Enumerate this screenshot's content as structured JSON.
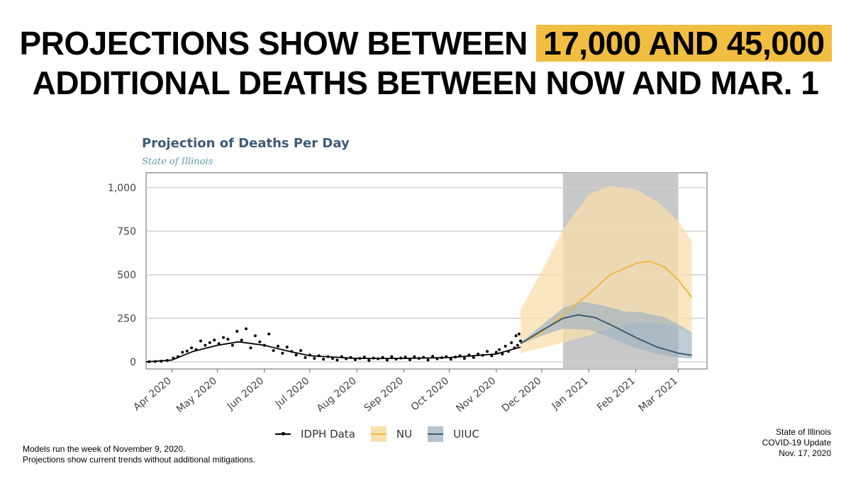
{
  "headline": {
    "line1_prefix": "PROJECTIONS SHOW BETWEEN",
    "line1_highlight": "17,000 AND 45,000",
    "line2": "ADDITIONAL DEATHS BETWEEN NOW AND MAR. 1"
  },
  "colors": {
    "highlight": "#f2be42",
    "idph": "#000000",
    "nu": "#f2b744",
    "nu_band": "#f8dfae",
    "uiuc": "#3c5d73",
    "uiuc_band": "#9eb1c0",
    "projection_shade": "#c8c8c8"
  },
  "chart_data": {
    "type": "line",
    "title": "Projection of Deaths Per Day",
    "subtitle": "State of Illinois",
    "xlabel": "",
    "ylabel": "",
    "ylim": [
      0,
      1000
    ],
    "yticks": [
      0,
      250,
      500,
      750,
      1000
    ],
    "ytick_labels": [
      "0",
      "250",
      "500",
      "750",
      "1,000"
    ],
    "x_tick_labels": [
      "Apr 2020",
      "May 2020",
      "Jun 2020",
      "Jul 2020",
      "Aug 2020",
      "Sep 2020",
      "Oct 2020",
      "Nov 2020",
      "Dec 2020",
      "Jan 2021",
      "Feb 2021",
      "Mar 2021"
    ],
    "x_tick_dates": [
      "2020-04-01",
      "2020-05-01",
      "2020-06-01",
      "2020-07-01",
      "2020-08-01",
      "2020-09-01",
      "2020-10-01",
      "2020-11-01",
      "2020-12-01",
      "2021-01-01",
      "2021-02-01",
      "2021-03-01"
    ],
    "xlim": [
      "2020-03-15",
      "2021-03-20"
    ],
    "projection_window": [
      "2020-12-15",
      "2021-03-01"
    ],
    "grid": "horizontal",
    "legend_position": "bottom",
    "series": [
      {
        "name": "IDPH Data",
        "style": "points+smooth",
        "points": [
          [
            "2020-03-17",
            1
          ],
          [
            "2020-03-21",
            2
          ],
          [
            "2020-03-25",
            4
          ],
          [
            "2020-03-29",
            8
          ],
          [
            "2020-04-02",
            22
          ],
          [
            "2020-04-05",
            30
          ],
          [
            "2020-04-08",
            55
          ],
          [
            "2020-04-11",
            62
          ],
          [
            "2020-04-14",
            80
          ],
          [
            "2020-04-17",
            70
          ],
          [
            "2020-04-20",
            120
          ],
          [
            "2020-04-23",
            95
          ],
          [
            "2020-04-26",
            110
          ],
          [
            "2020-04-29",
            125
          ],
          [
            "2020-05-02",
            105
          ],
          [
            "2020-05-05",
            140
          ],
          [
            "2020-05-08",
            130
          ],
          [
            "2020-05-11",
            95
          ],
          [
            "2020-05-14",
            175
          ],
          [
            "2020-05-17",
            125
          ],
          [
            "2020-05-20",
            190
          ],
          [
            "2020-05-23",
            80
          ],
          [
            "2020-05-26",
            150
          ],
          [
            "2020-05-29",
            115
          ],
          [
            "2020-06-01",
            95
          ],
          [
            "2020-06-04",
            160
          ],
          [
            "2020-06-07",
            65
          ],
          [
            "2020-06-10",
            90
          ],
          [
            "2020-06-13",
            50
          ],
          [
            "2020-06-16",
            85
          ],
          [
            "2020-06-19",
            60
          ],
          [
            "2020-06-22",
            40
          ],
          [
            "2020-06-25",
            65
          ],
          [
            "2020-06-28",
            25
          ],
          [
            "2020-07-01",
            40
          ],
          [
            "2020-07-04",
            20
          ],
          [
            "2020-07-07",
            35
          ],
          [
            "2020-07-10",
            15
          ],
          [
            "2020-07-13",
            30
          ],
          [
            "2020-07-16",
            20
          ],
          [
            "2020-07-19",
            10
          ],
          [
            "2020-07-22",
            30
          ],
          [
            "2020-07-25",
            18
          ],
          [
            "2020-07-28",
            25
          ],
          [
            "2020-07-31",
            12
          ],
          [
            "2020-08-03",
            20
          ],
          [
            "2020-08-06",
            28
          ],
          [
            "2020-08-09",
            8
          ],
          [
            "2020-08-12",
            22
          ],
          [
            "2020-08-15",
            18
          ],
          [
            "2020-08-18",
            26
          ],
          [
            "2020-08-21",
            10
          ],
          [
            "2020-08-24",
            30
          ],
          [
            "2020-08-27",
            16
          ],
          [
            "2020-08-30",
            22
          ],
          [
            "2020-09-02",
            28
          ],
          [
            "2020-09-05",
            12
          ],
          [
            "2020-09-08",
            30
          ],
          [
            "2020-09-11",
            20
          ],
          [
            "2020-09-14",
            26
          ],
          [
            "2020-09-17",
            10
          ],
          [
            "2020-09-20",
            32
          ],
          [
            "2020-09-23",
            18
          ],
          [
            "2020-09-26",
            24
          ],
          [
            "2020-09-29",
            30
          ],
          [
            "2020-10-02",
            15
          ],
          [
            "2020-10-05",
            28
          ],
          [
            "2020-10-08",
            35
          ],
          [
            "2020-10-11",
            20
          ],
          [
            "2020-10-14",
            40
          ],
          [
            "2020-10-17",
            25
          ],
          [
            "2020-10-20",
            45
          ],
          [
            "2020-10-23",
            38
          ],
          [
            "2020-10-26",
            60
          ],
          [
            "2020-10-29",
            35
          ],
          [
            "2020-11-01",
            55
          ],
          [
            "2020-11-03",
            70
          ],
          [
            "2020-11-05",
            45
          ],
          [
            "2020-11-07",
            90
          ],
          [
            "2020-11-09",
            60
          ],
          [
            "2020-11-11",
            110
          ],
          [
            "2020-11-13",
            80
          ],
          [
            "2020-11-14",
            150
          ],
          [
            "2020-11-15",
            95
          ],
          [
            "2020-11-16",
            160
          ],
          [
            "2020-11-17",
            120
          ]
        ],
        "smooth": [
          [
            "2020-03-15",
            0
          ],
          [
            "2020-04-01",
            10
          ],
          [
            "2020-04-15",
            60
          ],
          [
            "2020-05-01",
            95
          ],
          [
            "2020-05-15",
            115
          ],
          [
            "2020-06-01",
            95
          ],
          [
            "2020-06-15",
            65
          ],
          [
            "2020-07-01",
            35
          ],
          [
            "2020-08-01",
            20
          ],
          [
            "2020-09-01",
            20
          ],
          [
            "2020-10-01",
            25
          ],
          [
            "2020-11-01",
            45
          ],
          [
            "2020-11-17",
            85
          ]
        ]
      },
      {
        "name": "NU",
        "line": [
          [
            "2020-11-17",
            105
          ],
          [
            "2020-12-01",
            170
          ],
          [
            "2020-12-15",
            270
          ],
          [
            "2021-01-01",
            390
          ],
          [
            "2021-01-15",
            500
          ],
          [
            "2021-02-01",
            565
          ],
          [
            "2021-02-10",
            578
          ],
          [
            "2021-02-20",
            545
          ],
          [
            "2021-03-01",
            470
          ],
          [
            "2021-03-10",
            370
          ]
        ],
        "upper": [
          [
            "2020-11-17",
            300
          ],
          [
            "2020-12-01",
            520
          ],
          [
            "2020-12-15",
            760
          ],
          [
            "2021-01-01",
            960
          ],
          [
            "2021-01-15",
            1010
          ],
          [
            "2021-02-01",
            990
          ],
          [
            "2021-02-15",
            920
          ],
          [
            "2021-03-01",
            810
          ],
          [
            "2021-03-10",
            690
          ]
        ],
        "lower": [
          [
            "2020-11-17",
            50
          ],
          [
            "2020-12-01",
            80
          ],
          [
            "2020-12-15",
            110
          ],
          [
            "2021-01-01",
            150
          ],
          [
            "2021-01-15",
            195
          ],
          [
            "2021-02-01",
            225
          ],
          [
            "2021-02-15",
            225
          ],
          [
            "2021-03-01",
            195
          ],
          [
            "2021-03-10",
            160
          ]
        ]
      },
      {
        "name": "UIUC",
        "line": [
          [
            "2020-11-17",
            105
          ],
          [
            "2020-12-01",
            180
          ],
          [
            "2020-12-15",
            250
          ],
          [
            "2020-12-25",
            270
          ],
          [
            "2021-01-05",
            255
          ],
          [
            "2021-01-15",
            215
          ],
          [
            "2021-02-01",
            140
          ],
          [
            "2021-02-15",
            85
          ],
          [
            "2021-03-01",
            50
          ],
          [
            "2021-03-10",
            38
          ]
        ],
        "upper": [
          [
            "2020-11-17",
            110
          ],
          [
            "2020-12-01",
            210
          ],
          [
            "2020-12-15",
            310
          ],
          [
            "2020-12-28",
            345
          ],
          [
            "2021-01-10",
            325
          ],
          [
            "2021-01-25",
            290
          ],
          [
            "2021-02-05",
            285
          ],
          [
            "2021-02-20",
            255
          ],
          [
            "2021-03-01",
            215
          ],
          [
            "2021-03-10",
            170
          ]
        ],
        "lower": [
          [
            "2020-11-17",
            100
          ],
          [
            "2020-12-01",
            150
          ],
          [
            "2020-12-15",
            190
          ],
          [
            "2021-01-01",
            185
          ],
          [
            "2021-01-15",
            140
          ],
          [
            "2021-02-01",
            80
          ],
          [
            "2021-02-15",
            45
          ],
          [
            "2021-03-01",
            25
          ],
          [
            "2021-03-10",
            18
          ]
        ]
      }
    ]
  },
  "legend": {
    "items": [
      "IDPH Data",
      "NU",
      "UIUC"
    ]
  },
  "footnote": {
    "line1": "Models run the week of November 9, 2020.",
    "line2": "Projections show current trends without additional mitigations."
  },
  "credit": {
    "line1": "State of Illinois",
    "line2": "COVID-19 Update",
    "line3": "Nov. 17, 2020"
  }
}
